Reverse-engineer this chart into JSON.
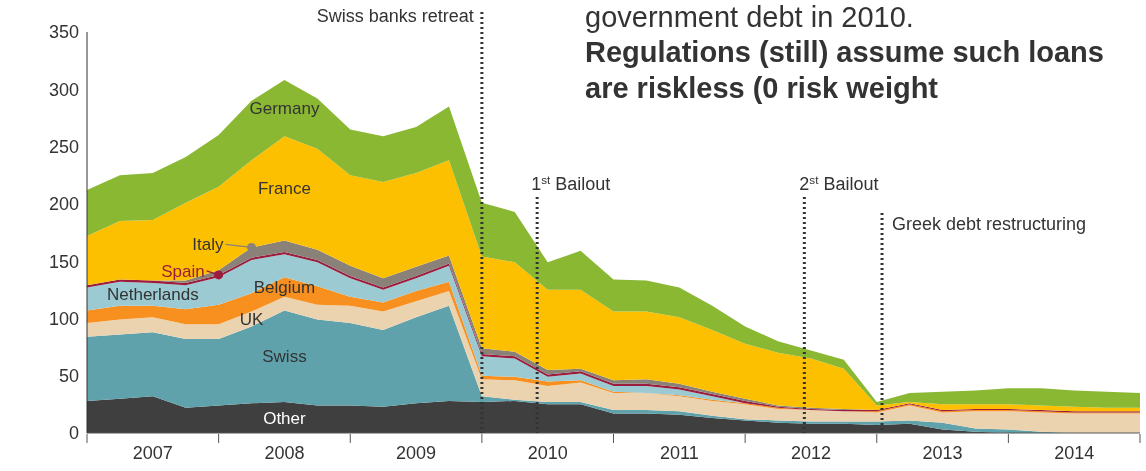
{
  "chart_data": {
    "type": "area",
    "stacked": true,
    "title": "Regulations (still) assume such loans are riskless (0 risk weight",
    "annotations": [
      "government debt in 2010."
    ],
    "x": [
      2007,
      2007.25,
      2007.5,
      2007.75,
      2008,
      2008.25,
      2008.5,
      2008.75,
      2009,
      2009.25,
      2009.5,
      2009.75,
      2010,
      2010.25,
      2010.5,
      2010.75,
      2011,
      2011.25,
      2011.5,
      2011.75,
      2012,
      2012.25,
      2012.5,
      2012.75,
      2013,
      2013.25,
      2013.5,
      2013.75,
      2014,
      2014.25,
      2014.5,
      2014.75,
      2015
    ],
    "xlim": [
      2007,
      2015
    ],
    "xticks": [
      {
        "value": 2007,
        "label": null
      },
      {
        "value": 2007.5,
        "label": "2007"
      },
      {
        "value": 2008,
        "label": null
      },
      {
        "value": 2008.5,
        "label": "2008"
      },
      {
        "value": 2009,
        "label": null
      },
      {
        "value": 2009.5,
        "label": "2009"
      },
      {
        "value": 2010,
        "label": null
      },
      {
        "value": 2010.5,
        "label": "2010"
      },
      {
        "value": 2011,
        "label": null
      },
      {
        "value": 2011.5,
        "label": "2011"
      },
      {
        "value": 2012,
        "label": null
      },
      {
        "value": 2012.5,
        "label": "2012"
      },
      {
        "value": 2013,
        "label": null
      },
      {
        "value": 2013.5,
        "label": "2013"
      },
      {
        "value": 2014,
        "label": null
      },
      {
        "value": 2014.5,
        "label": "2014"
      },
      {
        "value": 2015,
        "label": null
      }
    ],
    "ylim": [
      0,
      350
    ],
    "yticks": [
      0,
      50,
      100,
      150,
      200,
      250,
      300,
      350
    ],
    "series": [
      {
        "name": "Other",
        "color": "#3f3f3f",
        "values": [
          28,
          30,
          32,
          22,
          24,
          26,
          27,
          24,
          24,
          23,
          26,
          28,
          27,
          28,
          25,
          25,
          17,
          17,
          16,
          13,
          11,
          9,
          8,
          8,
          7,
          8,
          3,
          1,
          0,
          0,
          0,
          0,
          0
        ]
      },
      {
        "name": "Swiss",
        "color": "#5fa2ac",
        "values": [
          56,
          56,
          56,
          60,
          58,
          67,
          80,
          75,
          72,
          67,
          75,
          83,
          5,
          1,
          2,
          2,
          3,
          3,
          3,
          2,
          1,
          2,
          2,
          2,
          3,
          3,
          6,
          3,
          3,
          1,
          0,
          0,
          0
        ]
      },
      {
        "name": "UK",
        "color": "#ecd3b0",
        "values": [
          12,
          13,
          13,
          13,
          13,
          13,
          12,
          13,
          15,
          16,
          14,
          13,
          15,
          17,
          14,
          17,
          15,
          15,
          13,
          13,
          13,
          10,
          10,
          9,
          8,
          13,
          9,
          15,
          16,
          17,
          17,
          17,
          17
        ]
      },
      {
        "name": "Belgium",
        "color": "#f7901e",
        "values": [
          11,
          12,
          10,
          13,
          17,
          16,
          17,
          16,
          8,
          8,
          9,
          8,
          3,
          3,
          4,
          2,
          1,
          0,
          1,
          1,
          1,
          1,
          0,
          0,
          1,
          1,
          1,
          1,
          1,
          1,
          1,
          1,
          1
        ]
      },
      {
        "name": "Netherlands",
        "color": "#9ccad3",
        "values": [
          20,
          21,
          20,
          21,
          24,
          29,
          20,
          21,
          16,
          11,
          11,
          14,
          17,
          16,
          4,
          6,
          5,
          6,
          5,
          3,
          0,
          0,
          0,
          0,
          0,
          0,
          0,
          0,
          0,
          0,
          0,
          0,
          0
        ]
      },
      {
        "name": "Spain",
        "color": "#9b1c3c",
        "values": [
          2,
          2,
          2,
          2,
          2,
          2,
          2,
          2,
          2,
          2,
          2,
          2,
          2,
          2,
          2,
          2,
          2,
          2,
          2,
          2,
          2,
          1,
          1,
          1,
          1,
          1,
          1,
          1,
          1,
          1,
          1,
          1,
          1
        ]
      },
      {
        "name": "Italy",
        "color": "#8a8279",
        "values": [
          0,
          0,
          0,
          2,
          4,
          9,
          10,
          9,
          9,
          8,
          8,
          7,
          5,
          4,
          4,
          2,
          3,
          4,
          3,
          2,
          2,
          1,
          1,
          1,
          0,
          0,
          0,
          0,
          0,
          0,
          0,
          0,
          0
        ]
      },
      {
        "name": "France",
        "color": "#fdc000",
        "values": [
          43,
          51,
          53,
          68,
          73,
          76,
          91,
          88,
          79,
          84,
          82,
          83,
          80,
          78,
          70,
          69,
          60,
          59,
          58,
          54,
          48,
          46,
          43,
          35,
          4,
          1,
          5,
          4,
          4,
          4,
          4,
          3,
          3
        ]
      },
      {
        "name": "Germany",
        "color": "#8ab833",
        "values": [
          40,
          40,
          41,
          40,
          45,
          52,
          49,
          44,
          40,
          40,
          40,
          47,
          47,
          44,
          24,
          34,
          28,
          27,
          26,
          21,
          15,
          10,
          7,
          8,
          3,
          8,
          11,
          12,
          14,
          15,
          14,
          14,
          13
        ]
      }
    ],
    "ref_lines": [
      {
        "axis": "x",
        "value": 2010,
        "label": "Swiss banks retreat",
        "line_style": "dotted",
        "color": "#333333"
      },
      {
        "axis": "x",
        "value": 2010.42,
        "label": "1$^{st}$ Bailout",
        "line_style": "dotted",
        "color": "#333333"
      },
      {
        "axis": "x",
        "value": 2012.45,
        "label": "2$^{st}$ Bailout",
        "line_style": "dotted",
        "color": "#333333"
      },
      {
        "axis": "x",
        "value": 2013.04,
        "label": "Greek debt restructuring",
        "line_style": "dotted",
        "color": "#333333"
      }
    ]
  }
}
